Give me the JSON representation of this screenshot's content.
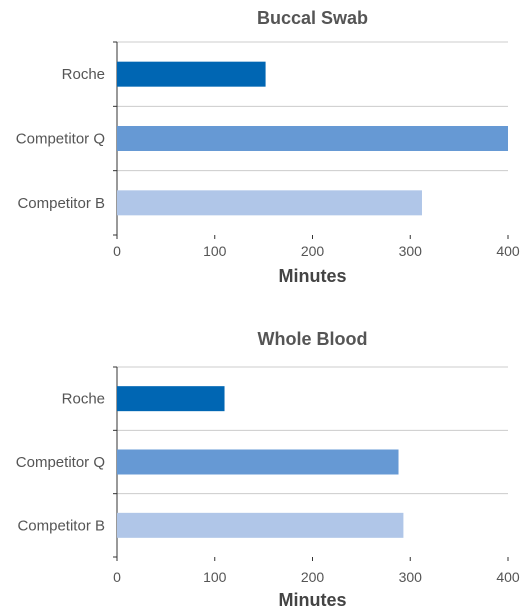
{
  "chart_data": [
    {
      "type": "bar",
      "orientation": "horizontal",
      "title": "Buccal Swab",
      "xlabel": "Minutes",
      "ylabel": "",
      "categories": [
        "Roche",
        "Competitor Q",
        "Competitor B"
      ],
      "values": [
        152,
        400,
        312
      ],
      "colors": [
        "#0066b3",
        "#6699d4",
        "#b0c6e8"
      ],
      "xlim": [
        0,
        400
      ],
      "xticks": [
        0,
        100,
        200,
        300,
        400
      ],
      "grid": true
    },
    {
      "type": "bar",
      "orientation": "horizontal",
      "title": "Whole Blood",
      "xlabel": "Minutes",
      "ylabel": "",
      "categories": [
        "Roche",
        "Competitor Q",
        "Competitor B"
      ],
      "values": [
        110,
        288,
        293
      ],
      "colors": [
        "#0066b3",
        "#6699d4",
        "#b0c6e8"
      ],
      "xlim": [
        0,
        400
      ],
      "xticks": [
        0,
        100,
        200,
        300,
        400
      ],
      "grid": true
    }
  ]
}
